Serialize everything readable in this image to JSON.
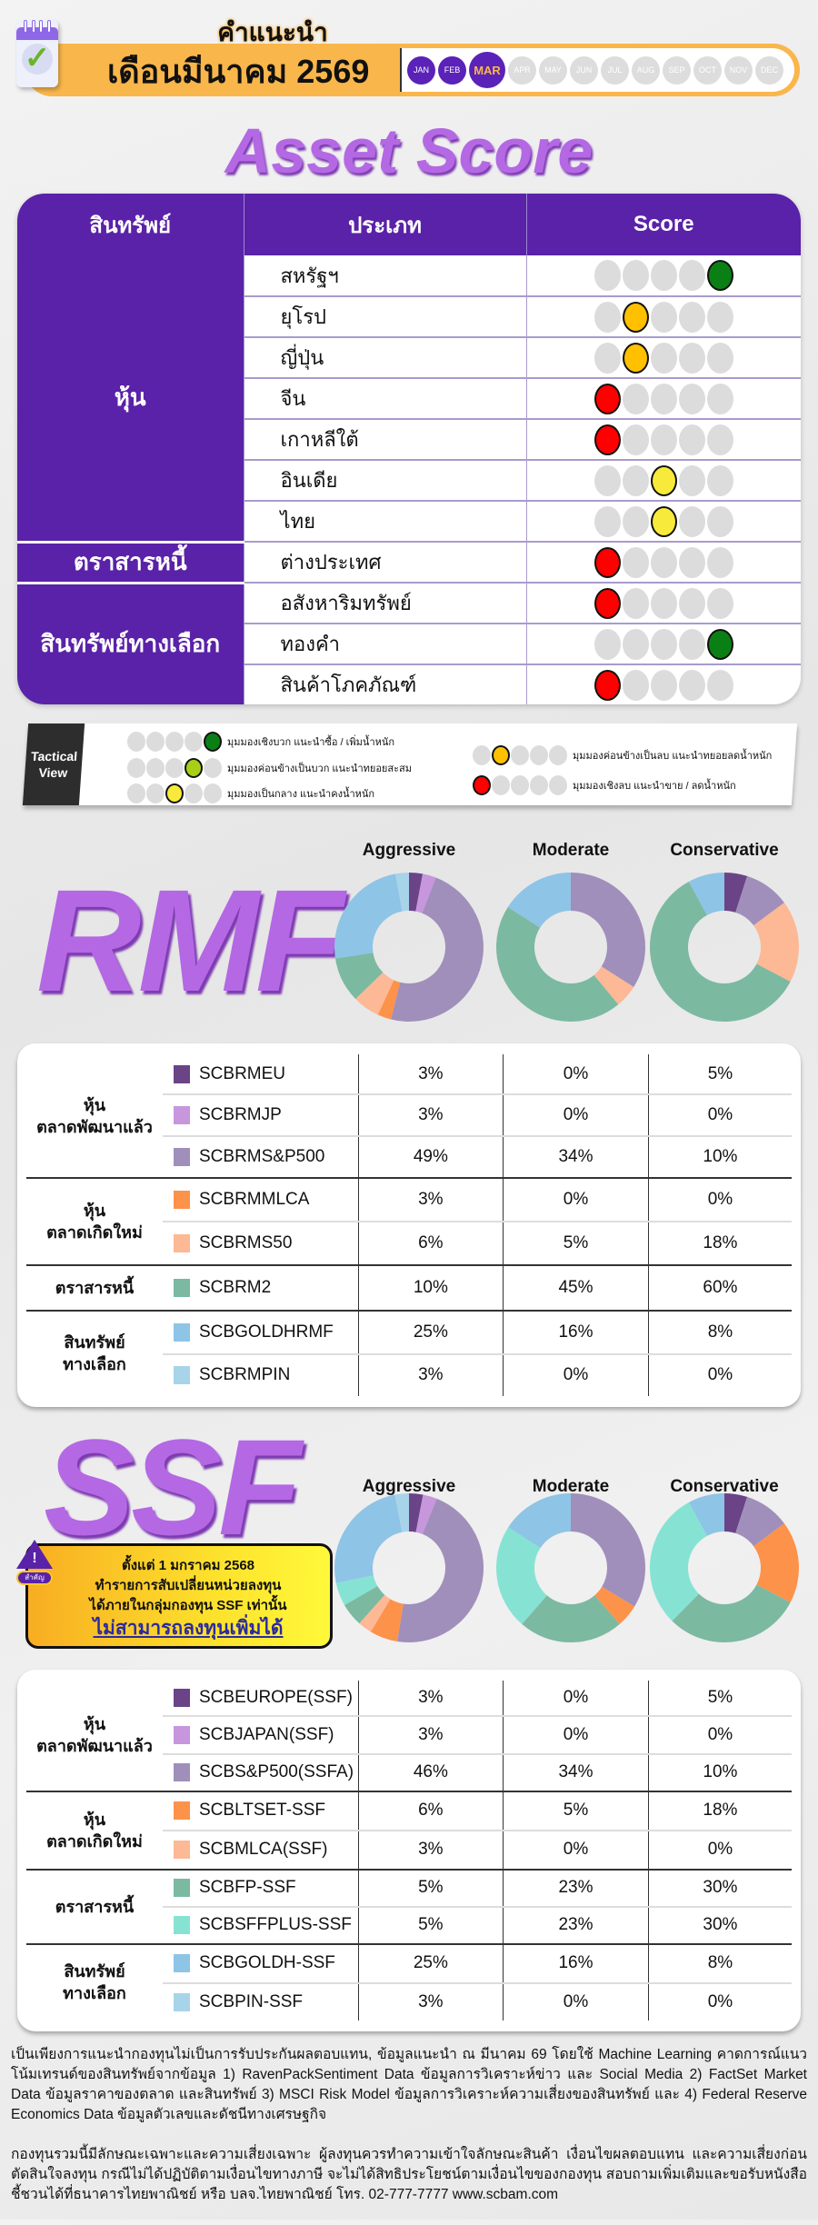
{
  "header": {
    "title_line1": "คำแนะนำ",
    "title_line2": "เดือนมีนาคม 2569",
    "months": [
      "JAN",
      "FEB",
      "MAR",
      "APR",
      "MAY",
      "JUN",
      "JUL",
      "AUG",
      "SEP",
      "OCT",
      "NOV",
      "DEC"
    ],
    "current_month_index": 2
  },
  "asset_score": {
    "title": "Asset Score",
    "columns": [
      "สินทรัพย์",
      "ประเภท",
      "Score"
    ],
    "score_colors": {
      "1": "#ff0000",
      "2": "#ffc000",
      "3": "#f7ea3a",
      "4": "#a6cf16",
      "5": "#0a7f14"
    },
    "groups": [
      {
        "name": "หุ้น",
        "rows": [
          {
            "type": "สหรัฐฯ",
            "score": 5
          },
          {
            "type": "ยุโรป",
            "score": 2
          },
          {
            "type": "ญี่ปุ่น",
            "score": 2
          },
          {
            "type": "จีน",
            "score": 1
          },
          {
            "type": "เกาหลีใต้",
            "score": 1
          },
          {
            "type": "อินเดีย",
            "score": 3
          },
          {
            "type": "ไทย",
            "score": 3
          }
        ]
      },
      {
        "name": "ตราสารหนี้",
        "rows": [
          {
            "type": "ต่างประเทศ",
            "score": 1
          }
        ]
      },
      {
        "name": "สินทรัพย์ทางเลือก",
        "rows": [
          {
            "type": "อสังหาริมทรัพย์",
            "score": 1
          },
          {
            "type": "ทองคำ",
            "score": 5
          },
          {
            "type": "สินค้าโภคภัณฑ์",
            "score": 1
          }
        ]
      }
    ]
  },
  "legend": {
    "title_line1": "Tactical",
    "title_line2": "View",
    "items": [
      {
        "score": 5,
        "text": "มุมมองเชิงบวก แนะนำซื้อ / เพิ่มน้ำหนัก"
      },
      {
        "score": 4,
        "text": "มุมมองค่อนข้างเป็นบวก แนะนำทยอยสะสม"
      },
      {
        "score": 3,
        "text": "มุมมองเป็นกลาง แนะนำคงน้ำหนัก"
      },
      {
        "score": 2,
        "text": "มุมมองค่อนข้างเป็นลบ แนะนำทยอยลดน้ำหนัก"
      },
      {
        "score": 1,
        "text": "มุมมองเชิงลบ แนะนำขาย / ลดน้ำหนัก"
      }
    ]
  },
  "chart_data": [
    {
      "type": "pie",
      "title": "RMF",
      "series_names": [
        "Aggressive",
        "Moderate",
        "Conservative"
      ],
      "groups": [
        {
          "name": "หุ้น\nตลาดพัฒนาแล้ว",
          "funds": [
            {
              "name": "SCBRMEU",
              "color": "#6a4487",
              "values": [
                3,
                0,
                5
              ]
            },
            {
              "name": "SCBRMJP",
              "color": "#c796dd",
              "values": [
                3,
                0,
                0
              ]
            },
            {
              "name": "SCBRMS&P500",
              "color": "#a08fba",
              "values": [
                49,
                34,
                10
              ]
            }
          ]
        },
        {
          "name": "หุ้น\nตลาดเกิดใหม่",
          "funds": [
            {
              "name": "SCBRMMLCA",
              "color": "#fd924a",
              "values": [
                3,
                0,
                0
              ]
            },
            {
              "name": "SCBRMS50",
              "color": "#fdb896",
              "values": [
                6,
                5,
                18
              ]
            }
          ]
        },
        {
          "name": "ตราสารหนี้",
          "funds": [
            {
              "name": "SCBRM2",
              "color": "#7cb9a1",
              "values": [
                10,
                45,
                60
              ]
            }
          ]
        },
        {
          "name": "สินทรัพย์\nทางเลือก",
          "funds": [
            {
              "name": "SCBGOLDHRMF",
              "color": "#8ec4e6",
              "values": [
                25,
                16,
                8
              ]
            },
            {
              "name": "SCBRMPIN",
              "color": "#a8d4ea",
              "values": [
                3,
                0,
                0
              ]
            }
          ]
        }
      ]
    },
    {
      "type": "pie",
      "title": "SSF",
      "series_names": [
        "Aggressive",
        "Moderate",
        "Conservative"
      ],
      "groups": [
        {
          "name": "หุ้น\nตลาดพัฒนาแล้ว",
          "funds": [
            {
              "name": "SCBEUROPE(SSF)",
              "color": "#6a4487",
              "values": [
                3,
                0,
                5
              ]
            },
            {
              "name": "SCBJAPAN(SSF)",
              "color": "#c796dd",
              "values": [
                3,
                0,
                0
              ]
            },
            {
              "name": "SCBS&P500(SSFA)",
              "color": "#a08fba",
              "values": [
                46,
                34,
                10
              ]
            }
          ]
        },
        {
          "name": "หุ้น\nตลาดเกิดใหม่",
          "funds": [
            {
              "name": "SCBLTSET-SSF",
              "color": "#fd924a",
              "values": [
                6,
                5,
                18
              ]
            },
            {
              "name": "SCBMLCA(SSF)",
              "color": "#fdb896",
              "values": [
                3,
                0,
                0
              ]
            }
          ]
        },
        {
          "name": "ตราสารหนี้",
          "funds": [
            {
              "name": "SCBFP-SSF",
              "color": "#7cb9a1",
              "values": [
                5,
                23,
                30
              ]
            },
            {
              "name": "SCBSFFPLUS-SSF",
              "color": "#86e3d4",
              "values": [
                5,
                23,
                30
              ]
            }
          ]
        },
        {
          "name": "สินทรัพย์\nทางเลือก",
          "funds": [
            {
              "name": "SCBGOLDH-SSF",
              "color": "#8ec4e6",
              "values": [
                25,
                16,
                8
              ]
            },
            {
              "name": "SCBPIN-SSF",
              "color": "#a8d4ea",
              "values": [
                3,
                0,
                0
              ]
            }
          ]
        }
      ]
    }
  ],
  "ssf_notice": {
    "badge": "สำคัญ",
    "line1": "ตั้งแต่ 1 มกราคม 2568",
    "line2": "ทำรายการสับเปลี่ยนหน่วยลงทุน",
    "line3": "ได้ภายในกลุ่มกองทุน SSF เท่านั้น",
    "line4": "ไม่สามารถลงทุนเพิ่มได้"
  },
  "footer": {
    "p1": "เป็นเพียงการแนะนำกองทุนไม่เป็นการรับประกันผลตอบแทน, ข้อมูลแนะนำ ณ มีนาคม 69 โดยใช้ Machine Learning คาดการณ์แนวโน้มเทรนด์ของสินทรัพย์จากข้อมูล 1) RavenPackSentiment Data ข้อมูลการวิเคราะห์ข่าว และ Social Media 2) FactSet Market Data ข้อมูลราคาของตลาด และสินทรัพย์ 3) MSCI Risk Model ข้อมูลการวิเคราะห์ความเสี่ยงของสินทรัพย์ และ 4) Federal Reserve Economics Data ข้อมูลตัวเลขและดัชนีทางเศรษฐกิจ",
    "p2": "กองทุนรวมนี้มีลักษณะเฉพาะและความเสี่ยงเฉพาะ ผู้ลงทุนควรทำความเข้าใจลักษณะสินค้า เงื่อนไขผลตอบแทน และความเสี่ยงก่อนตัดสินใจลงทุน กรณีไม่ได้ปฏิบัติตามเงื่อนไขทางภาษี จะไม่ได้สิทธิประโยชน์ตามเงื่อนไขของกองทุน สอบถามเพิ่มเติมและขอรับหนังสือชี้ชวนได้ที่ธนาคารไทยพาณิชย์ หรือ บลจ.ไทยพาณิชย์ โทร. 02-777-7777 www.scbam.com"
  }
}
